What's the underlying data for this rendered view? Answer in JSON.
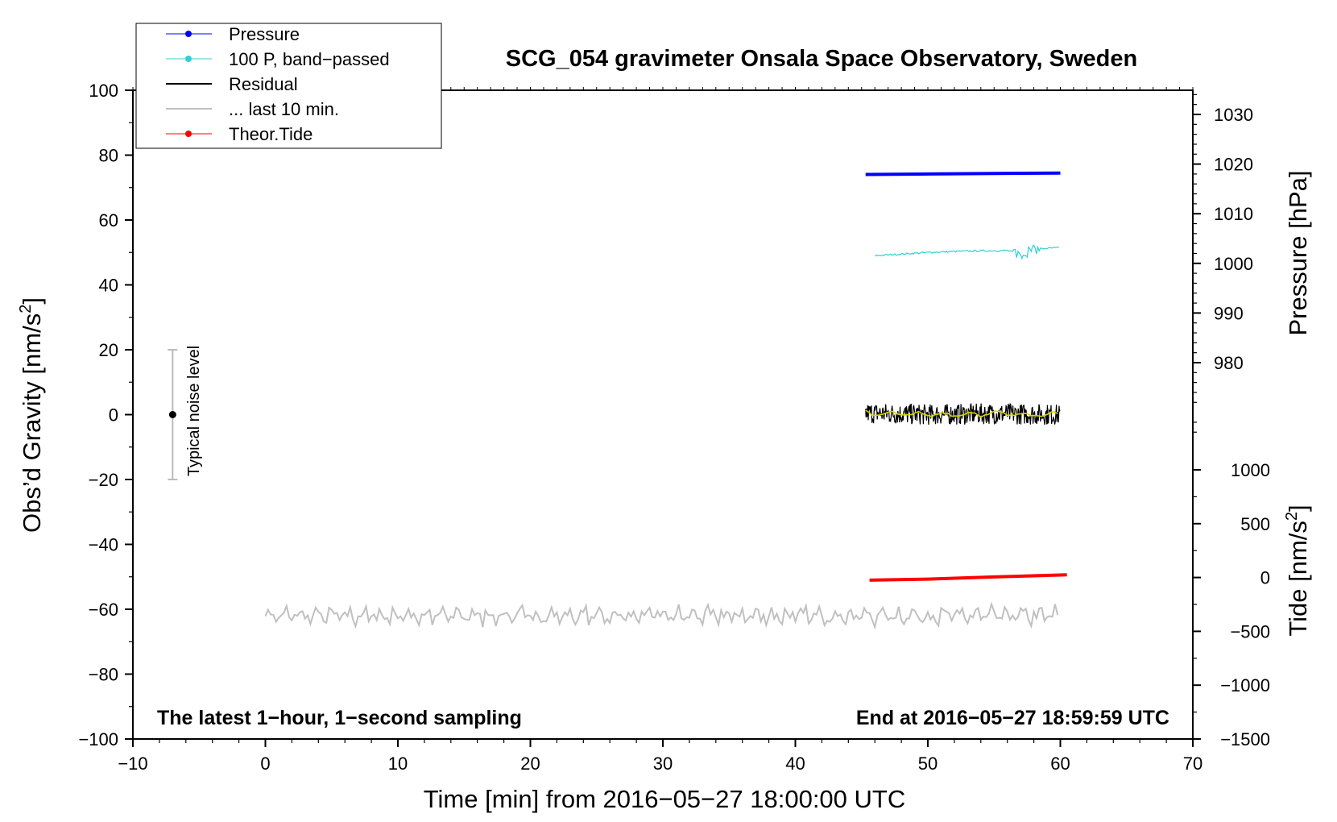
{
  "chart_data": {
    "type": "line",
    "title": "SCG_054 gravimeter Onsala Space Observatory, Sweden",
    "xlabel": "Time [min] from 2016−05−27 18:00:00 UTC",
    "ylabel_left": "Obs’d Gravity [nm/s",
    "ylabel_left_sup": "2",
    "ylabel_left_close": "]",
    "ylabel_pressure": "Pressure [hPa]",
    "ylabel_tide": "Tide [nm/s",
    "ylabel_tide_sup": "2",
    "ylabel_tide_close": "]",
    "note_left": "The latest 1−hour, 1−second sampling",
    "note_right": "End at 2016−05−27 18:59:59 UTC",
    "noise_label": "Typical noise level",
    "xlim": [
      -10,
      70
    ],
    "ylim": [
      -100,
      100
    ],
    "pressure_lim": [
      965,
      1035
    ],
    "tide_lim": [
      -1500,
      1500
    ],
    "x_ticks": [
      "−10",
      "0",
      "10",
      "20",
      "30",
      "40",
      "50",
      "60",
      "70"
    ],
    "y_ticks": [
      "100",
      "80",
      "60",
      "40",
      "20",
      "0",
      "−20",
      "−40",
      "−60",
      "−80",
      "−100"
    ],
    "pressure_ticks": [
      "1030",
      "1020",
      "1010",
      "1000",
      "990",
      "980"
    ],
    "tide_ticks": [
      "1000",
      "500",
      "0",
      "−500",
      "−1000",
      "−1500"
    ],
    "legend": [
      "Pressure",
      "100 P, band−passed",
      "Residual",
      "... last 10 min.",
      "Theor.Tide"
    ],
    "legend_position": "top-left",
    "colors": {
      "pressure": "#0000ff",
      "bandpassed": "#2fd0d6",
      "residual": "#000000",
      "residual_smooth": "#d4d400",
      "last10": "#c0c0c0",
      "tide": "#ff0000",
      "noise_bar": "#bbbbbb"
    },
    "noise_bar": {
      "x": -7,
      "y": 0,
      "low": -20,
      "high": 20
    },
    "series": [
      {
        "name": "Pressure",
        "axis": "pressure",
        "x": [
          45.3,
          50,
          55,
          60
        ],
        "y": [
          1017.9,
          1018.0,
          1018.1,
          1018.2
        ]
      },
      {
        "name": "100 P, band−passed",
        "axis": "gravity",
        "x": [
          46,
          48,
          50,
          52,
          54,
          56,
          57,
          58,
          60
        ],
        "y": [
          49,
          49.5,
          50,
          50.3,
          50.5,
          50.6,
          49.5,
          51,
          51.5
        ]
      },
      {
        "name": "Residual",
        "axis": "gravity",
        "x": [
          45.3,
          50,
          55,
          60
        ],
        "y": [
          0.5,
          0,
          0.3,
          0
        ]
      },
      {
        "name": "... last 10 min.",
        "axis": "gravity",
        "x": [
          0,
          10,
          20,
          30,
          40,
          50,
          60
        ],
        "y": [
          -62,
          -62,
          -62,
          -62,
          -62,
          -62,
          -62
        ]
      },
      {
        "name": "Theor.Tide",
        "axis": "tide",
        "x": [
          45.6,
          50,
          55,
          60.5
        ],
        "y": [
          -25,
          -15,
          5,
          25
        ]
      }
    ]
  }
}
